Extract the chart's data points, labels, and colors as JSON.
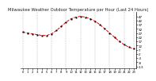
{
  "title": "Milwaukee Weather Outdoor Temperature per Hour (Last 24 Hours)",
  "hours": [
    0,
    1,
    2,
    3,
    4,
    5,
    6,
    7,
    8,
    9,
    10,
    11,
    12,
    13,
    14,
    15,
    16,
    17,
    18,
    19,
    20,
    21,
    22,
    23
  ],
  "temps": [
    28,
    27,
    26,
    25,
    24,
    24,
    26,
    30,
    35,
    40,
    44,
    46,
    47,
    46,
    44,
    41,
    37,
    32,
    27,
    22,
    17,
    13,
    10,
    8
  ],
  "line_color": "#dd0000",
  "marker_color": "#000000",
  "bg_color": "#ffffff",
  "grid_color": "#999999",
  "xlim": [
    -0.5,
    23.5
  ],
  "ylim": [
    -15,
    52
  ],
  "yticks": [
    47,
    42,
    37,
    32,
    27,
    22,
    17,
    12,
    7,
    2,
    -3,
    -8,
    -13
  ],
  "ytick_labels": [
    "47",
    "42",
    "37",
    "32",
    "27",
    "22",
    "17",
    "12",
    "7",
    "2",
    "-3",
    "-8",
    "-13"
  ],
  "vgrid_hours": [
    0,
    3,
    6,
    9,
    12,
    15,
    18,
    21,
    23
  ],
  "title_fontsize": 3.8,
  "tick_fontsize": 3.0
}
